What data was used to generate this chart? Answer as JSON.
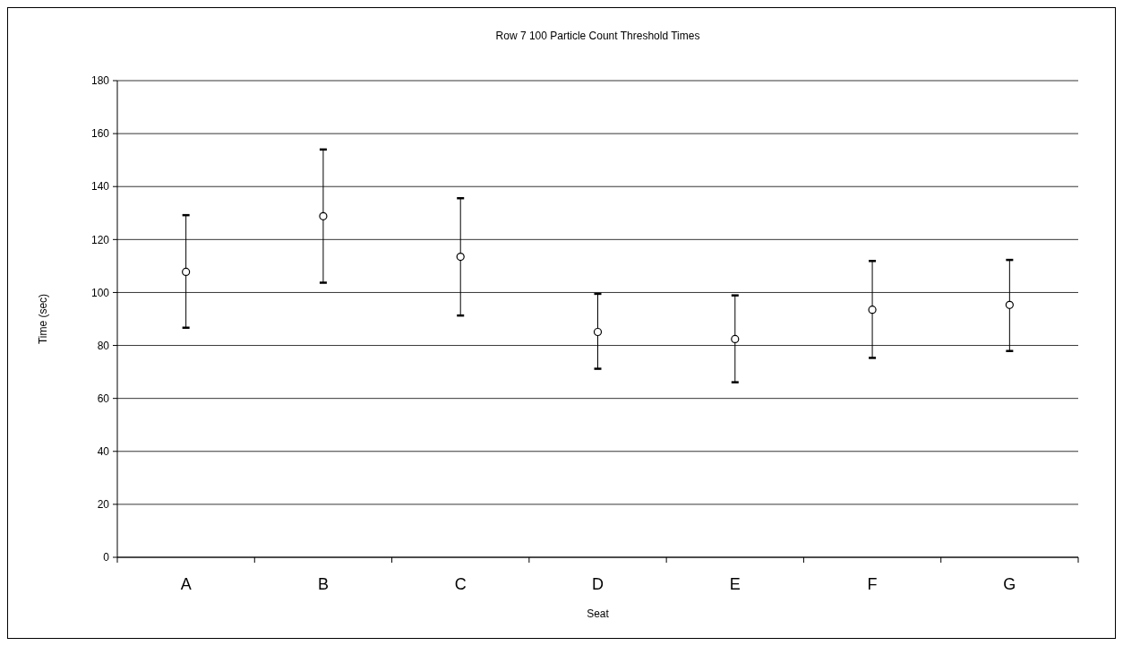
{
  "chart_data": {
    "type": "scatter",
    "title": "Row 7 100 Particle Count Threshold Times",
    "xlabel": "Seat",
    "ylabel": "Time (sec)",
    "categories": [
      "A",
      "B",
      "C",
      "D",
      "E",
      "F",
      "G"
    ],
    "values": [
      107.8,
      128.8,
      113.5,
      85.1,
      82.4,
      93.5,
      95.3
    ],
    "errors": [
      [
        86.7,
        129.2
      ],
      [
        103.7,
        154
      ],
      [
        91.3,
        135.6
      ],
      [
        71.2,
        99.5
      ],
      [
        66.1,
        98.9
      ],
      [
        75.3,
        111.9
      ],
      [
        77.9,
        112.3
      ]
    ],
    "color": "#000000",
    "marker": "circle",
    "ylim": [
      0,
      180
    ],
    "yticks": [
      0,
      20,
      40,
      60,
      80,
      100,
      120,
      140,
      160,
      180
    ],
    "grid": "y"
  }
}
